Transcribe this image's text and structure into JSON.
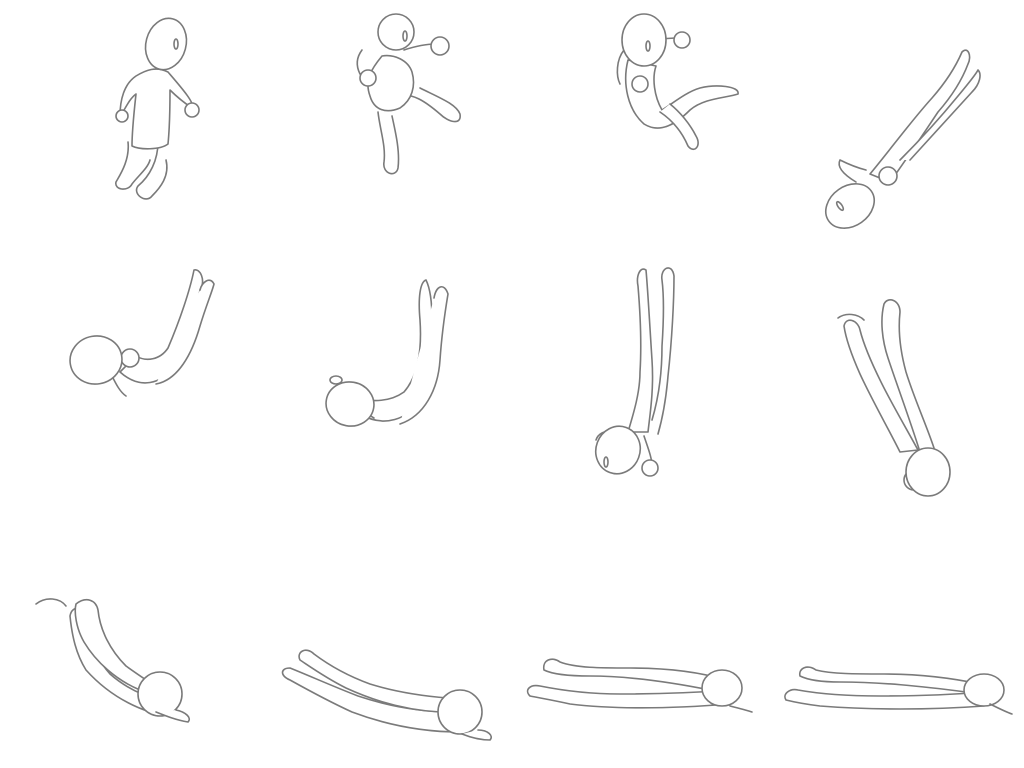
{
  "sheet": {
    "background": "#ffffff",
    "line_color": "#7a7a7a",
    "line_width": 1.6
  },
  "frames": [
    {
      "pose": "running"
    },
    {
      "pose": "jump-kick"
    },
    {
      "pose": "tucked-flip"
    },
    {
      "pose": "diagonal-dive"
    },
    {
      "pose": "arched-fall"
    },
    {
      "pose": "curled-fall"
    },
    {
      "pose": "upside-down-vertical"
    },
    {
      "pose": "head-first-fall"
    },
    {
      "pose": "landing-on-face"
    },
    {
      "pose": "sliding-prone"
    },
    {
      "pose": "lying-prone"
    },
    {
      "pose": "lying-flat"
    }
  ]
}
